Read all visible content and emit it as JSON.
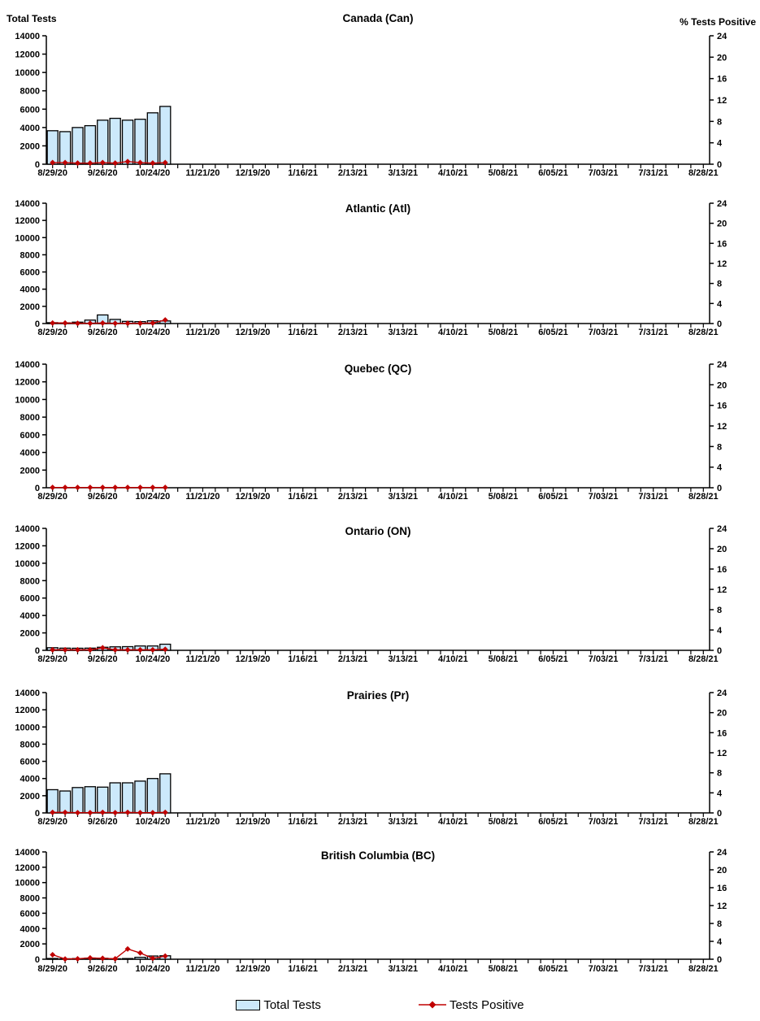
{
  "axes": {
    "left_title": "Total Tests",
    "right_title": "% Tests Positive",
    "y_left": {
      "min": 0,
      "max": 14000,
      "step": 2000
    },
    "y_right": {
      "min": 0,
      "max": 24,
      "step": 4
    },
    "x_tick_labels": [
      "8/29/20",
      "9/26/20",
      "10/24/20",
      "11/21/20",
      "12/19/20",
      "1/16/21",
      "2/13/21",
      "3/13/21",
      "4/10/21",
      "5/08/21",
      "6/05/21",
      "7/03/21",
      "7/31/21",
      "8/28/21"
    ],
    "weeks_total": 53,
    "label_every_weeks": 4
  },
  "colors": {
    "bar_fill": "#CCE9FB",
    "bar_border": "#000000",
    "line": "#C00000",
    "text": "#000000"
  },
  "legend": {
    "items": [
      {
        "label": "Total Tests",
        "swatch": "bar-swatch"
      },
      {
        "label": "Tests Positive",
        "swatch": "line-diamond-swatch"
      }
    ]
  },
  "chart_data": [
    {
      "type": "bar",
      "title": "Canada (Can)",
      "categories": [
        "8/29/20",
        "9/05/20",
        "9/12/20",
        "9/19/20",
        "9/26/20",
        "10/03/20",
        "10/10/20",
        "10/17/20",
        "10/24/20",
        "10/31/20"
      ],
      "series": [
        {
          "name": "Total Tests",
          "axis": "left",
          "values": [
            3650,
            3550,
            4000,
            4200,
            4800,
            5000,
            4800,
            4900,
            5600,
            6300
          ]
        },
        {
          "name": "Tests Positive",
          "axis": "right",
          "values": [
            0.3,
            0.3,
            0.2,
            0.2,
            0.3,
            0.2,
            0.5,
            0.3,
            0.2,
            0.3
          ]
        }
      ],
      "ylim_left": [
        0,
        14000
      ],
      "ylim_right": [
        0,
        24
      ]
    },
    {
      "type": "bar",
      "title": "Atlantic (Atl)",
      "categories": [
        "8/29/20",
        "9/05/20",
        "9/12/20",
        "9/19/20",
        "9/26/20",
        "10/03/20",
        "10/10/20",
        "10/17/20",
        "10/24/20",
        "10/31/20"
      ],
      "series": [
        {
          "name": "Total Tests",
          "axis": "left",
          "values": [
            100,
            80,
            160,
            400,
            1000,
            480,
            250,
            220,
            320,
            300
          ]
        },
        {
          "name": "Tests Positive",
          "axis": "right",
          "values": [
            0.1,
            0.1,
            0.05,
            0.05,
            0.1,
            0.05,
            0.05,
            0.05,
            0.1,
            0.7
          ]
        }
      ],
      "ylim_left": [
        0,
        14000
      ],
      "ylim_right": [
        0,
        24
      ]
    },
    {
      "type": "bar",
      "title": "Quebec (QC)",
      "categories": [
        "8/29/20",
        "9/05/20",
        "9/12/20",
        "9/19/20",
        "9/26/20",
        "10/03/20",
        "10/10/20",
        "10/17/20",
        "10/24/20",
        "10/31/20"
      ],
      "series": [
        {
          "name": "Total Tests",
          "axis": "left",
          "values": [
            20,
            20,
            20,
            20,
            30,
            20,
            20,
            30,
            30,
            30
          ]
        },
        {
          "name": "Tests Positive",
          "axis": "right",
          "values": [
            0.05,
            0.05,
            0.05,
            0.05,
            0.05,
            0.05,
            0.05,
            0.05,
            0.05,
            0.05
          ]
        }
      ],
      "ylim_left": [
        0,
        14000
      ],
      "ylim_right": [
        0,
        24
      ]
    },
    {
      "type": "bar",
      "title": "Ontario (ON)",
      "categories": [
        "8/29/20",
        "9/05/20",
        "9/12/20",
        "9/19/20",
        "9/26/20",
        "10/03/20",
        "10/10/20",
        "10/17/20",
        "10/24/20",
        "10/31/20"
      ],
      "series": [
        {
          "name": "Total Tests",
          "axis": "left",
          "values": [
            300,
            250,
            240,
            250,
            350,
            400,
            420,
            500,
            500,
            700
          ]
        },
        {
          "name": "Tests Positive",
          "axis": "right",
          "values": [
            0.1,
            0.1,
            0.1,
            0.1,
            0.5,
            0.1,
            0.1,
            0.1,
            0.1,
            0.2
          ]
        }
      ],
      "ylim_left": [
        0,
        14000
      ],
      "ylim_right": [
        0,
        24
      ]
    },
    {
      "type": "bar",
      "title": "Prairies (Pr)",
      "categories": [
        "8/29/20",
        "9/05/20",
        "9/12/20",
        "9/19/20",
        "9/26/20",
        "10/03/20",
        "10/10/20",
        "10/17/20",
        "10/24/20",
        "10/31/20"
      ],
      "series": [
        {
          "name": "Total Tests",
          "axis": "left",
          "values": [
            2700,
            2550,
            2950,
            3050,
            3000,
            3500,
            3500,
            3700,
            4000,
            4550
          ]
        },
        {
          "name": "Tests Positive",
          "axis": "right",
          "values": [
            0.1,
            0.1,
            0.05,
            0.05,
            0.1,
            0.05,
            0.1,
            0.05,
            0.05,
            0.1
          ]
        }
      ],
      "ylim_left": [
        0,
        14000
      ],
      "ylim_right": [
        0,
        24
      ]
    },
    {
      "type": "bar",
      "title": "British Columbia (BC)",
      "categories": [
        "8/29/20",
        "9/05/20",
        "9/12/20",
        "9/19/20",
        "9/26/20",
        "10/03/20",
        "10/10/20",
        "10/17/20",
        "10/24/20",
        "10/31/20"
      ],
      "series": [
        {
          "name": "Total Tests",
          "axis": "left",
          "values": [
            100,
            60,
            90,
            150,
            120,
            60,
            90,
            250,
            420,
            450
          ]
        },
        {
          "name": "Tests Positive",
          "axis": "right",
          "values": [
            1.0,
            0.05,
            0.1,
            0.3,
            0.2,
            0.1,
            2.3,
            1.4,
            0.2,
            0.7
          ]
        }
      ],
      "ylim_left": [
        0,
        14000
      ],
      "ylim_right": [
        0,
        24
      ]
    }
  ]
}
